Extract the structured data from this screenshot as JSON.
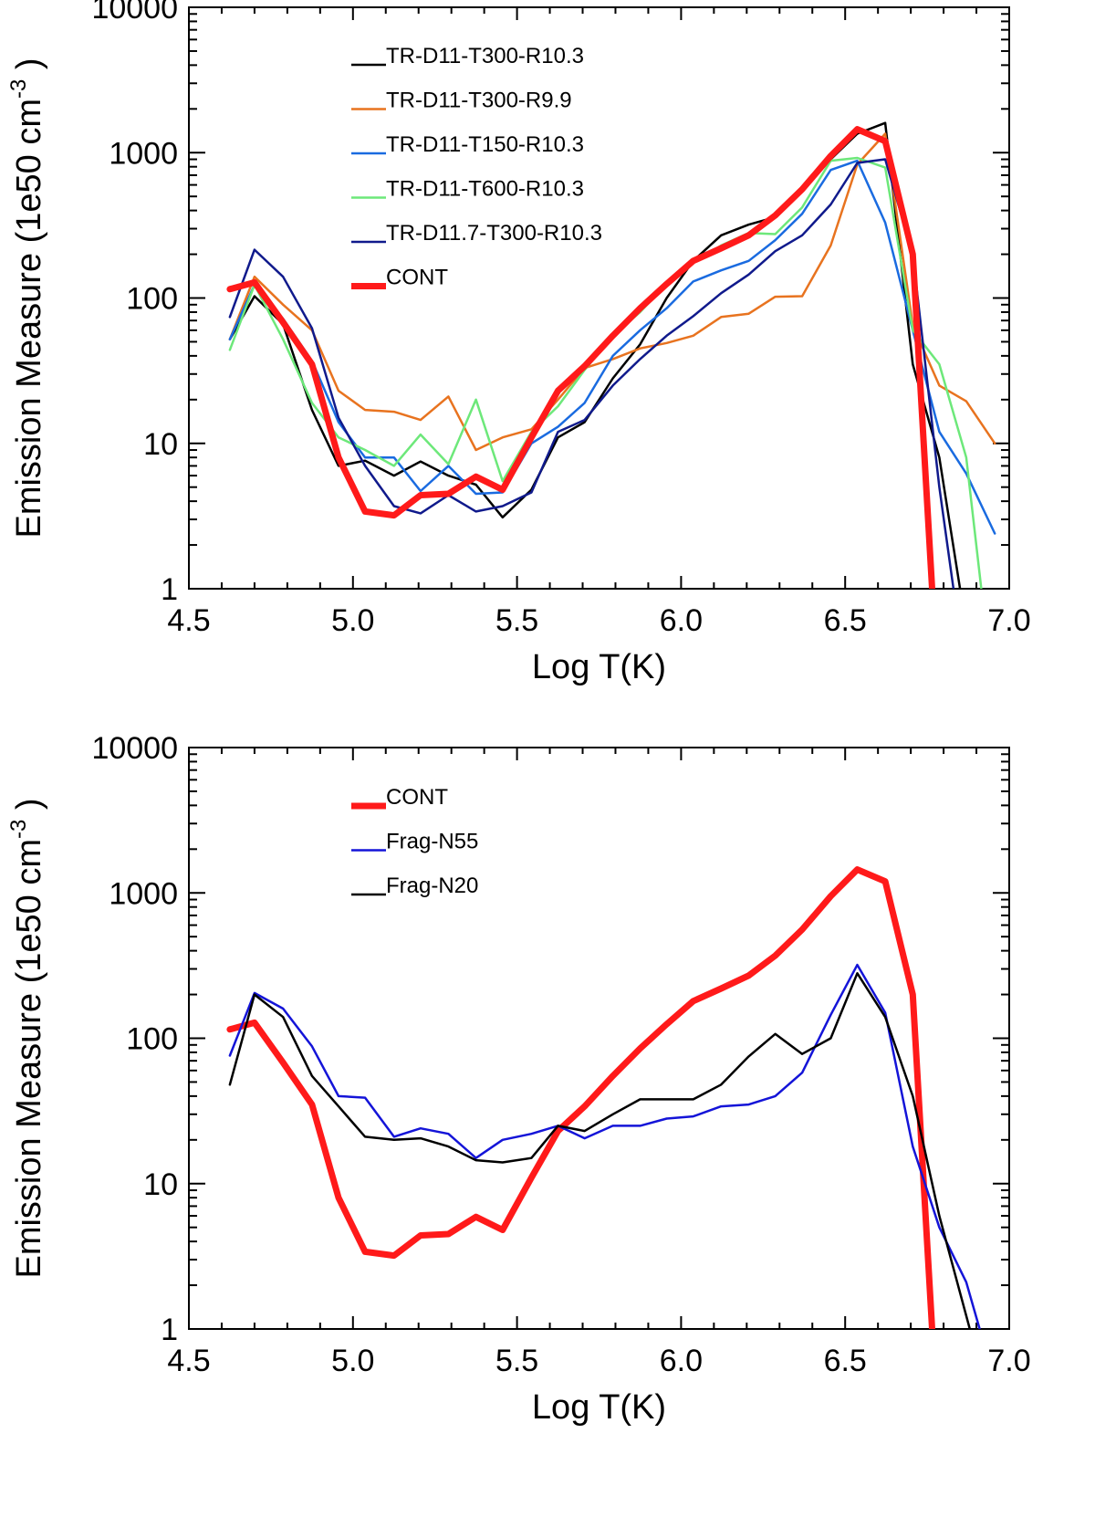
{
  "chart_data": [
    {
      "type": "line",
      "xlabel": "Log T(K)",
      "ylabel_main": "Emission Measure (1e50 cm",
      "ylabel_sup": "-3",
      "ylabel_close": ")",
      "xlim": [
        4.5,
        7.0
      ],
      "ylim": [
        1,
        10000
      ],
      "yscale": "log",
      "xticks": [
        "4.5",
        "5.0",
        "5.5",
        "6.0",
        "6.5",
        "7.0"
      ],
      "yticks": [
        "1",
        "10",
        "100",
        "1000",
        "10000"
      ],
      "legend_position": "top-left",
      "series": [
        {
          "name": "TR-D11-T300-R10.3",
          "color": "#000000",
          "width": 2.5,
          "x": [
            4.625,
            4.7,
            4.787,
            4.875,
            4.956,
            5.037,
            5.125,
            5.206,
            5.291,
            5.375,
            5.456,
            5.544,
            5.625,
            5.706,
            5.792,
            5.875,
            5.956,
            6.037,
            6.122,
            6.206,
            6.287,
            6.369,
            6.456,
            6.537,
            6.622,
            6.706,
            6.787,
            6.85
          ],
          "y": [
            52,
            103,
            66,
            17,
            7,
            7.6,
            6,
            7.5,
            6,
            5.2,
            3.1,
            4.8,
            11,
            14,
            28,
            48,
            100,
            180,
            270,
            320,
            360,
            550,
            900,
            1350,
            1600,
            35,
            8,
            1
          ]
        },
        {
          "name": "TR-D11-T300-R9.9",
          "color": "#e8731f",
          "width": 2.5,
          "x": [
            4.625,
            4.7,
            4.787,
            4.875,
            4.956,
            5.037,
            5.125,
            5.206,
            5.291,
            5.375,
            5.456,
            5.544,
            5.625,
            5.706,
            5.792,
            5.875,
            5.956,
            6.037,
            6.122,
            6.206,
            6.287,
            6.369,
            6.456,
            6.537,
            6.622,
            6.706,
            6.787,
            6.869,
            6.956
          ],
          "y": [
            52,
            140,
            90,
            60,
            23,
            17,
            16.5,
            14.5,
            21,
            9,
            11,
            12.5,
            20,
            33,
            38,
            45,
            49,
            55,
            74,
            78,
            102,
            103,
            230,
            830,
            1350,
            65,
            25,
            19.5,
            10
          ]
        },
        {
          "name": "TR-D11-T150-R10.3",
          "color": "#1a6be0",
          "width": 2.5,
          "x": [
            4.625,
            4.7,
            4.787,
            4.875,
            4.956,
            5.037,
            5.125,
            5.206,
            5.291,
            5.375,
            5.456,
            5.544,
            5.625,
            5.706,
            5.792,
            5.875,
            5.956,
            6.037,
            6.122,
            6.206,
            6.287,
            6.369,
            6.456,
            6.537,
            6.622,
            6.706,
            6.787,
            6.869,
            6.956
          ],
          "y": [
            52,
            123,
            72,
            37,
            14,
            8,
            8,
            4.7,
            7,
            4.5,
            4.6,
            10,
            13,
            19,
            40,
            60,
            85,
            130,
            155,
            180,
            250,
            380,
            760,
            880,
            330,
            60,
            12,
            6.2,
            2.4
          ]
        },
        {
          "name": "TR-D11-T600-R10.3",
          "color": "#6de87a",
          "width": 2.5,
          "x": [
            4.625,
            4.7,
            4.787,
            4.875,
            4.956,
            5.037,
            5.125,
            5.206,
            5.291,
            5.375,
            5.456,
            5.544,
            5.625,
            5.706,
            5.792,
            5.875,
            5.956,
            6.037,
            6.122,
            6.206,
            6.287,
            6.369,
            6.456,
            6.537,
            6.622,
            6.706,
            6.787,
            6.869,
            6.915
          ],
          "y": [
            44,
            123,
            52,
            19,
            11,
            9,
            7,
            11.5,
            7.2,
            20,
            5.5,
            12,
            18,
            32,
            55,
            80,
            125,
            175,
            230,
            280,
            275,
            420,
            880,
            920,
            790,
            60,
            35,
            8,
            1
          ]
        },
        {
          "name": "TR-D11.7-T300-R10.3",
          "color": "#101a8c",
          "width": 2.5,
          "x": [
            4.625,
            4.7,
            4.787,
            4.875,
            4.956,
            5.037,
            5.125,
            5.206,
            5.291,
            5.375,
            5.456,
            5.544,
            5.625,
            5.706,
            5.792,
            5.875,
            5.956,
            6.037,
            6.122,
            6.206,
            6.287,
            6.369,
            6.456,
            6.537,
            6.622,
            6.706,
            6.787,
            6.83
          ],
          "y": [
            74,
            215,
            140,
            62,
            15,
            7,
            3.7,
            3.3,
            4.4,
            3.4,
            3.7,
            4.6,
            12,
            14.5,
            25,
            38,
            55,
            75,
            108,
            145,
            210,
            270,
            440,
            850,
            900,
            200,
            5,
            1
          ]
        },
        {
          "name": "CONT",
          "color": "#ff1a1a",
          "width": 7,
          "x": [
            4.625,
            4.7,
            4.787,
            4.875,
            4.956,
            5.037,
            5.125,
            5.206,
            5.291,
            5.375,
            5.456,
            5.544,
            5.625,
            5.706,
            5.792,
            5.875,
            5.956,
            6.037,
            6.122,
            6.206,
            6.287,
            6.369,
            6.456,
            6.537,
            6.622,
            6.706,
            6.765
          ],
          "y": [
            115,
            128,
            68,
            35,
            8,
            3.4,
            3.2,
            4.4,
            4.5,
            5.9,
            4.8,
            11,
            23,
            34,
            55,
            85,
            125,
            180,
            220,
            270,
            370,
            560,
            950,
            1450,
            1200,
            200,
            1
          ]
        }
      ]
    },
    {
      "type": "line",
      "xlabel": "Log T(K)",
      "ylabel_main": "Emission Measure (1e50 cm",
      "ylabel_sup": "-3",
      "ylabel_close": ")",
      "xlim": [
        4.5,
        7.0
      ],
      "ylim": [
        1,
        10000
      ],
      "yscale": "log",
      "xticks": [
        "4.5",
        "5.0",
        "5.5",
        "6.0",
        "6.5",
        "7.0"
      ],
      "yticks": [
        "1",
        "10",
        "100",
        "1000",
        "10000"
      ],
      "legend_position": "top-left",
      "series": [
        {
          "name": "CONT",
          "color": "#ff1a1a",
          "width": 7,
          "x": [
            4.625,
            4.7,
            4.787,
            4.875,
            4.956,
            5.037,
            5.125,
            5.206,
            5.291,
            5.375,
            5.456,
            5.544,
            5.625,
            5.706,
            5.792,
            5.875,
            5.956,
            6.037,
            6.122,
            6.206,
            6.287,
            6.369,
            6.456,
            6.537,
            6.622,
            6.706,
            6.765
          ],
          "y": [
            115,
            128,
            68,
            35,
            8,
            3.4,
            3.2,
            4.4,
            4.5,
            5.9,
            4.8,
            11,
            23,
            34,
            55,
            85,
            125,
            180,
            220,
            270,
            370,
            560,
            950,
            1450,
            1200,
            200,
            1
          ]
        },
        {
          "name": "Frag-N55",
          "color": "#1414d8",
          "width": 2.5,
          "x": [
            4.625,
            4.7,
            4.787,
            4.875,
            4.956,
            5.037,
            5.125,
            5.206,
            5.291,
            5.375,
            5.456,
            5.544,
            5.625,
            5.706,
            5.792,
            5.875,
            5.956,
            6.037,
            6.122,
            6.206,
            6.287,
            6.369,
            6.456,
            6.537,
            6.622,
            6.706,
            6.787,
            6.869,
            6.91
          ],
          "y": [
            76,
            205,
            160,
            88,
            40,
            39,
            21,
            24,
            22,
            15,
            20,
            22,
            25,
            20.5,
            25,
            25,
            28,
            29,
            34,
            35,
            40,
            58,
            145,
            320,
            150,
            18,
            5,
            2.1,
            1
          ]
        },
        {
          "name": "Frag-N20",
          "color": "#000000",
          "width": 2.5,
          "x": [
            4.625,
            4.7,
            4.787,
            4.875,
            4.956,
            5.037,
            5.125,
            5.206,
            5.291,
            5.375,
            5.456,
            5.544,
            5.625,
            5.706,
            5.792,
            5.875,
            5.956,
            6.037,
            6.122,
            6.206,
            6.287,
            6.369,
            6.456,
            6.537,
            6.622,
            6.706,
            6.787,
            6.88
          ],
          "y": [
            48,
            200,
            140,
            55,
            34,
            21,
            20,
            20.5,
            18,
            14.5,
            14,
            15,
            25,
            23,
            30,
            38,
            38,
            38,
            48,
            75,
            107,
            78,
            100,
            280,
            140,
            40,
            6,
            1
          ]
        }
      ]
    }
  ]
}
